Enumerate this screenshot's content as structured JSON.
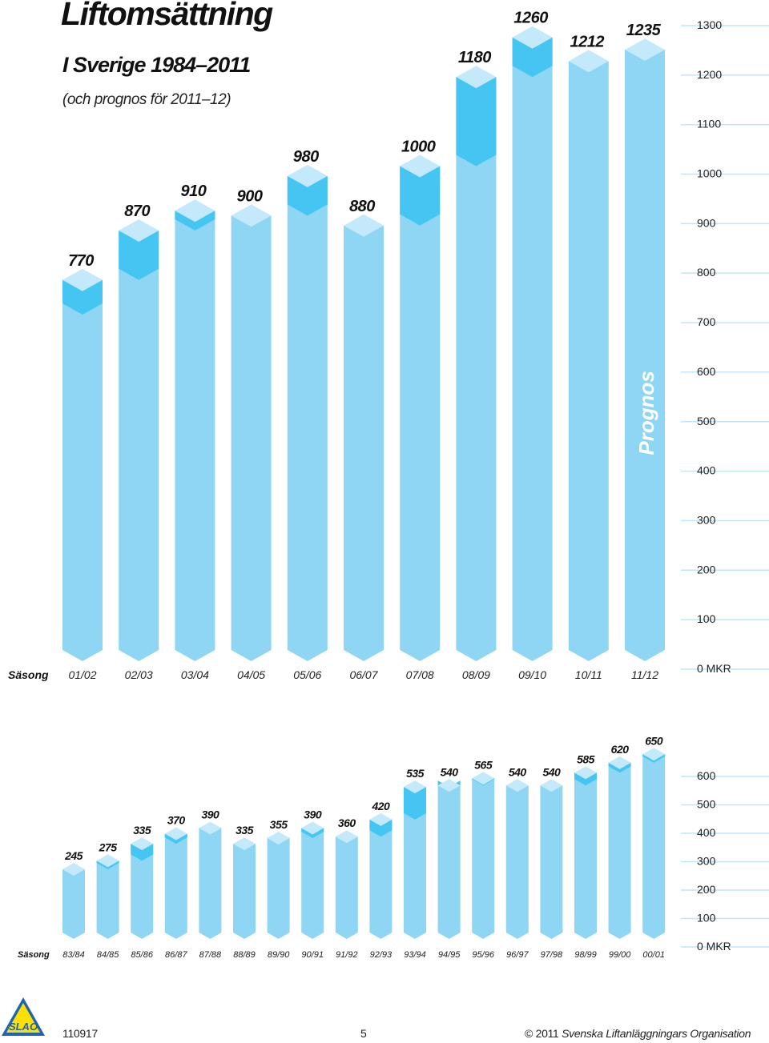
{
  "header": {
    "title": "Liftomsättning",
    "subtitle": "I Sverige 1984–2011",
    "note": "(och prognos för 2011–12)"
  },
  "colors": {
    "bar_light": "#8fd6f5",
    "bar_cap": "#c3e9fb",
    "bar_increase": "#45c6f2",
    "grid": "#bfe7f7"
  },
  "chart_data": [
    {
      "type": "bar",
      "categories": [
        "01/02",
        "02/03",
        "03/04",
        "04/05",
        "05/06",
        "06/07",
        "07/08",
        "08/09",
        "09/10",
        "10/11",
        "11/12"
      ],
      "values": [
        770,
        870,
        910,
        900,
        980,
        880,
        1000,
        1180,
        1260,
        1212,
        1235
      ],
      "value_labels": [
        "770",
        "870",
        "910",
        "900",
        "980",
        "880",
        "1000",
        "1180",
        "1260",
        "1212",
        "1235"
      ],
      "yticks": [
        "0 MKR",
        "100",
        "200",
        "300",
        "400",
        "500",
        "600",
        "700",
        "800",
        "900",
        "1000",
        "1100",
        "1200",
        "1300"
      ],
      "ylim": [
        0,
        1300
      ],
      "category_axis_label": "Säsong",
      "forecast_label": "Prognos",
      "forecast_category": "11/12",
      "grid": true
    },
    {
      "type": "bar",
      "categories": [
        "83/84",
        "84/85",
        "85/86",
        "86/87",
        "87/88",
        "88/89",
        "89/90",
        "90/91",
        "91/92",
        "92/93",
        "93/94",
        "94/95",
        "95/96",
        "96/97",
        "97/98",
        "98/99",
        "99/00",
        "00/01"
      ],
      "values": [
        245,
        275,
        335,
        370,
        390,
        335,
        355,
        390,
        360,
        420,
        535,
        540,
        565,
        540,
        540,
        585,
        620,
        650
      ],
      "value_labels": [
        "245",
        "275",
        "335",
        "370",
        "390",
        "335",
        "355",
        "390",
        "360",
        "420",
        "535",
        "540",
        "565",
        "540",
        "540",
        "585",
        "620",
        "650"
      ],
      "yticks": [
        "0 MKR",
        "100",
        "200",
        "300",
        "400",
        "500",
        "600"
      ],
      "ylim": [
        0,
        600
      ],
      "category_axis_label": "Säsong",
      "grid": true
    }
  ],
  "footer": {
    "code": "110917",
    "page": "5",
    "copyright_prefix": "© 2011",
    "organisation": "Svenska Liftanläggningars Organisation",
    "logo_text": "SLAO"
  }
}
